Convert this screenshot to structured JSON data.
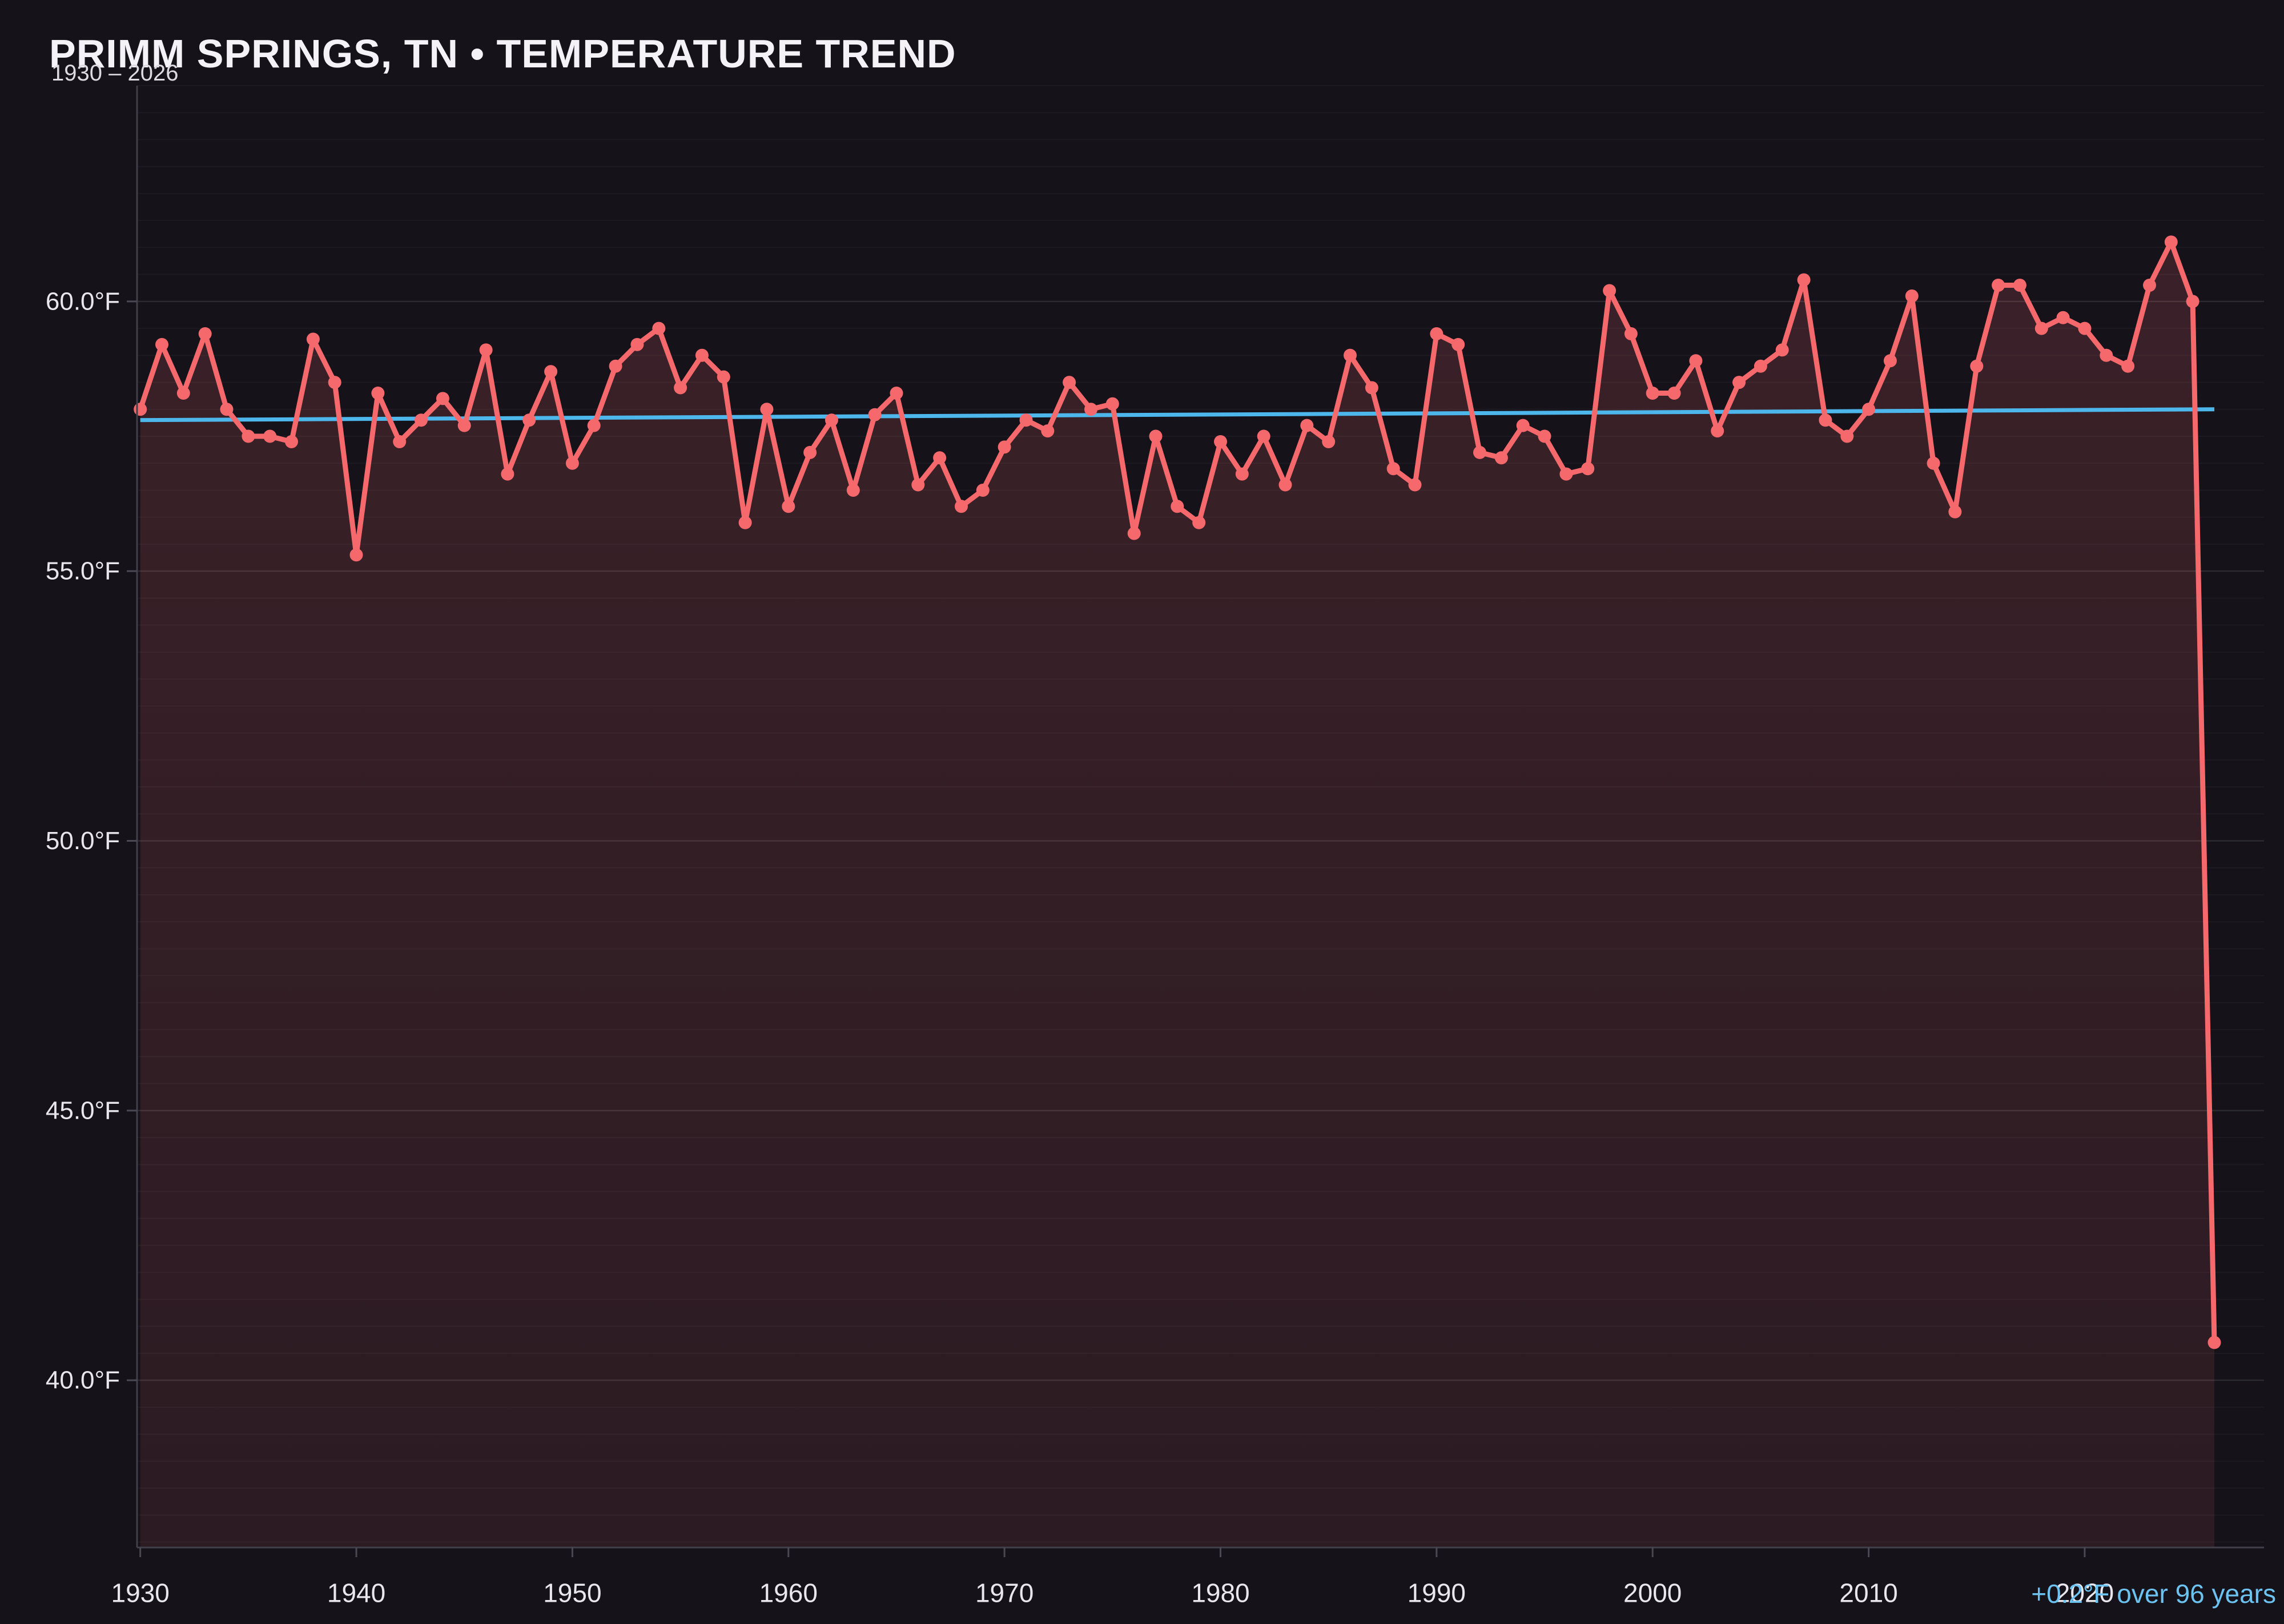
{
  "title": "PRIMM SPRINGS, TN • TEMPERATURE TREND",
  "subtitle": "1930 – 2026",
  "annotation": {
    "text": "+0.2°F over 96 years"
  },
  "colors": {
    "background": "#15121a",
    "series": "#f5696d",
    "marker": "#f5696d",
    "trend": "#4db7ec",
    "annotation": "#6cc3f2",
    "axis": "#413f4a",
    "tick": "#4a4853",
    "tick_label": "#e9e7ee",
    "title": "#f4f2f7",
    "subtitle": "#dddbe2",
    "grid_major": "rgba(255,255,255,0.10)",
    "grid_minor": "rgba(255,255,255,0.035)",
    "fill_top": "rgba(245,105,109,0.17)",
    "fill_bottom": "rgba(245,105,109,0.10)"
  },
  "chart_data": {
    "type": "line",
    "title": "PRIMM SPRINGS, TN • TEMPERATURE TREND",
    "subtitle": "1930 – 2026",
    "xlabel": "",
    "ylabel": "",
    "legend": "none",
    "grid": "horizontal-only",
    "start_year": 1930,
    "end_year": 2026,
    "years": [
      1930,
      1931,
      1932,
      1933,
      1934,
      1935,
      1936,
      1937,
      1938,
      1939,
      1940,
      1941,
      1942,
      1943,
      1944,
      1945,
      1946,
      1947,
      1948,
      1949,
      1950,
      1951,
      1952,
      1953,
      1954,
      1955,
      1956,
      1957,
      1958,
      1959,
      1960,
      1961,
      1962,
      1963,
      1964,
      1965,
      1966,
      1967,
      1968,
      1969,
      1970,
      1971,
      1972,
      1973,
      1974,
      1975,
      1976,
      1977,
      1978,
      1979,
      1980,
      1981,
      1982,
      1983,
      1984,
      1985,
      1986,
      1987,
      1988,
      1989,
      1990,
      1991,
      1992,
      1993,
      1994,
      1995,
      1996,
      1997,
      1998,
      1999,
      2000,
      2001,
      2002,
      2003,
      2004,
      2005,
      2006,
      2007,
      2008,
      2009,
      2010,
      2011,
      2012,
      2013,
      2014,
      2015,
      2016,
      2017,
      2018,
      2019,
      2020,
      2021,
      2022,
      2023,
      2024,
      2025,
      2026
    ],
    "values": [
      58.0,
      59.2,
      58.3,
      59.4,
      58.0,
      57.5,
      57.5,
      57.4,
      59.3,
      58.5,
      55.3,
      58.3,
      57.4,
      57.8,
      58.2,
      57.7,
      59.1,
      56.8,
      57.8,
      58.7,
      57.0,
      57.7,
      58.8,
      59.2,
      59.5,
      58.4,
      59.0,
      58.6,
      55.9,
      58.0,
      56.2,
      57.2,
      57.8,
      56.5,
      57.9,
      58.3,
      56.6,
      57.1,
      56.2,
      56.5,
      57.3,
      57.8,
      57.6,
      58.5,
      58.0,
      58.1,
      55.7,
      57.5,
      56.2,
      55.9,
      57.4,
      56.8,
      57.5,
      56.6,
      57.7,
      57.4,
      59.0,
      58.4,
      56.9,
      56.6,
      59.4,
      59.2,
      57.2,
      57.1,
      57.7,
      57.5,
      56.8,
      56.9,
      60.2,
      59.4,
      58.3,
      58.3,
      58.9,
      57.6,
      58.5,
      58.8,
      59.1,
      60.4,
      57.8,
      57.5,
      58.0,
      58.9,
      60.1,
      57.0,
      56.1,
      58.8,
      60.3,
      60.3,
      59.5,
      59.7,
      59.5,
      59.0,
      58.8,
      60.3,
      61.1,
      60.0,
      40.7
    ],
    "unit": "°F",
    "y_ticks": [
      {
        "value": 60,
        "label": "60.0°F"
      },
      {
        "value": 55,
        "label": "55.0°F"
      },
      {
        "value": 50,
        "label": "50.0°F"
      },
      {
        "value": 45,
        "label": "45.0°F"
      },
      {
        "value": 40,
        "label": "40.0°F"
      }
    ],
    "x_ticks": [
      {
        "value": 1930,
        "label": "1930"
      },
      {
        "value": 1940,
        "label": "1940"
      },
      {
        "value": 1950,
        "label": "1950"
      },
      {
        "value": 1960,
        "label": "1960"
      },
      {
        "value": 1970,
        "label": "1970"
      },
      {
        "value": 1980,
        "label": "1980"
      },
      {
        "value": 1990,
        "label": "1990"
      },
      {
        "value": 2000,
        "label": "2000"
      },
      {
        "value": 2010,
        "label": "2010"
      },
      {
        "value": 2020,
        "label": "2020"
      }
    ],
    "y_minor_step": 0.5,
    "ylim": [
      36.9,
      64.0
    ],
    "xlim": [
      1929.85,
      2028.3
    ],
    "trend": {
      "start_year": 1930,
      "end_year": 2026,
      "start_value": 57.8,
      "end_value": 58.0,
      "label": "+0.2°F over 96 years"
    }
  }
}
